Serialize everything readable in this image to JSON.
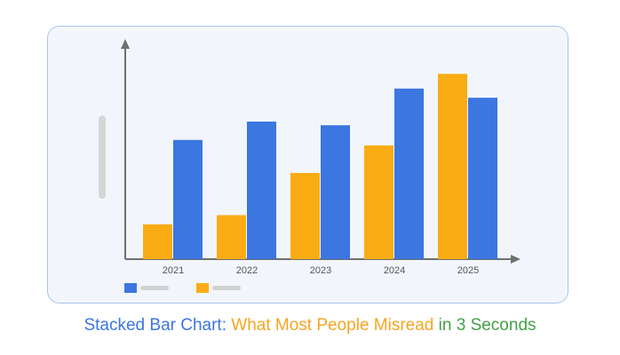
{
  "chart_data": {
    "type": "bar",
    "categories": [
      "2021",
      "2022",
      "2023",
      "2024",
      "2025"
    ],
    "series": [
      {
        "color": "#F9AC14",
        "values": [
          19,
          24,
          47,
          62,
          101
        ]
      },
      {
        "color": "#3B76E1",
        "values": [
          65,
          75,
          73,
          93,
          88
        ]
      }
    ],
    "ylim": [
      0,
      120
    ],
    "grid": false,
    "legend": "bottom-left",
    "title": "",
    "xlabel": "",
    "ylabel": ""
  },
  "caption": {
    "part1": "Stacked Bar Chart:",
    "part2": "What Most People Misread",
    "part3": "in 3 Seconds",
    "color1": "#3B76E1",
    "color2": "#F5A623",
    "color3": "#43A047"
  },
  "colors": {
    "axis": "#6f6f6f",
    "tick_label": "#555555",
    "legend_placeholder": "#d0d0d0",
    "scrollbar": "#d6d6d6"
  }
}
